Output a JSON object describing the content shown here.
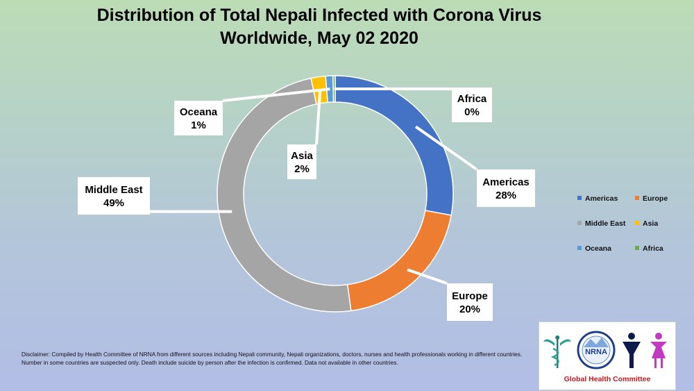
{
  "title_line1": "Distribution of Total Nepali Infected with Corona Virus",
  "title_line2": "Worldwide, May 02 2020",
  "chart_data": {
    "type": "pie",
    "variant": "doughnut",
    "title": "Distribution of Total Nepali Infected with Corona Virus Worldwide, May 02 2020",
    "slices": [
      {
        "name": "Americas",
        "value": 28,
        "label": "Americas",
        "pct_label": "28%",
        "color": "#4472c4"
      },
      {
        "name": "Europe",
        "value": 20,
        "label": "Europe",
        "pct_label": "20%",
        "color": "#ed7d31"
      },
      {
        "name": "Middle East",
        "value": 49,
        "label": "Middle East",
        "pct_label": "49%",
        "color": "#a5a5a5"
      },
      {
        "name": "Asia",
        "value": 2,
        "label": "Asia",
        "pct_label": "2%",
        "color": "#ffc000"
      },
      {
        "name": "Oceana",
        "value": 1,
        "label": "Oceana",
        "pct_label": "1%",
        "color": "#5b9bd5"
      },
      {
        "name": "Africa",
        "value": 0.3,
        "label": "Africa",
        "pct_label": "0%",
        "color": "#70ad47"
      }
    ],
    "legend_position": "right"
  },
  "legend": [
    {
      "name": "Americas",
      "color": "#4472c4"
    },
    {
      "name": "Europe",
      "color": "#ed7d31"
    },
    {
      "name": "Middle East",
      "color": "#a5a5a5"
    },
    {
      "name": "Asia",
      "color": "#ffc000"
    },
    {
      "name": "Oceana",
      "color": "#5b9bd5"
    },
    {
      "name": "Africa",
      "color": "#70ad47"
    }
  ],
  "disclaimer": "Disclaimer: Compiled by Health Committee  of NRNA from different sources including Nepali community, Nepali organizations, doctors, nurses and health professionals working in different countries. Number  in some countries are suspected only. Death include suicide by person after the infection is confirmed. Data not available in other countries.",
  "logo": {
    "emblem_text": "NRNA",
    "caption": "Global Health Committee"
  }
}
